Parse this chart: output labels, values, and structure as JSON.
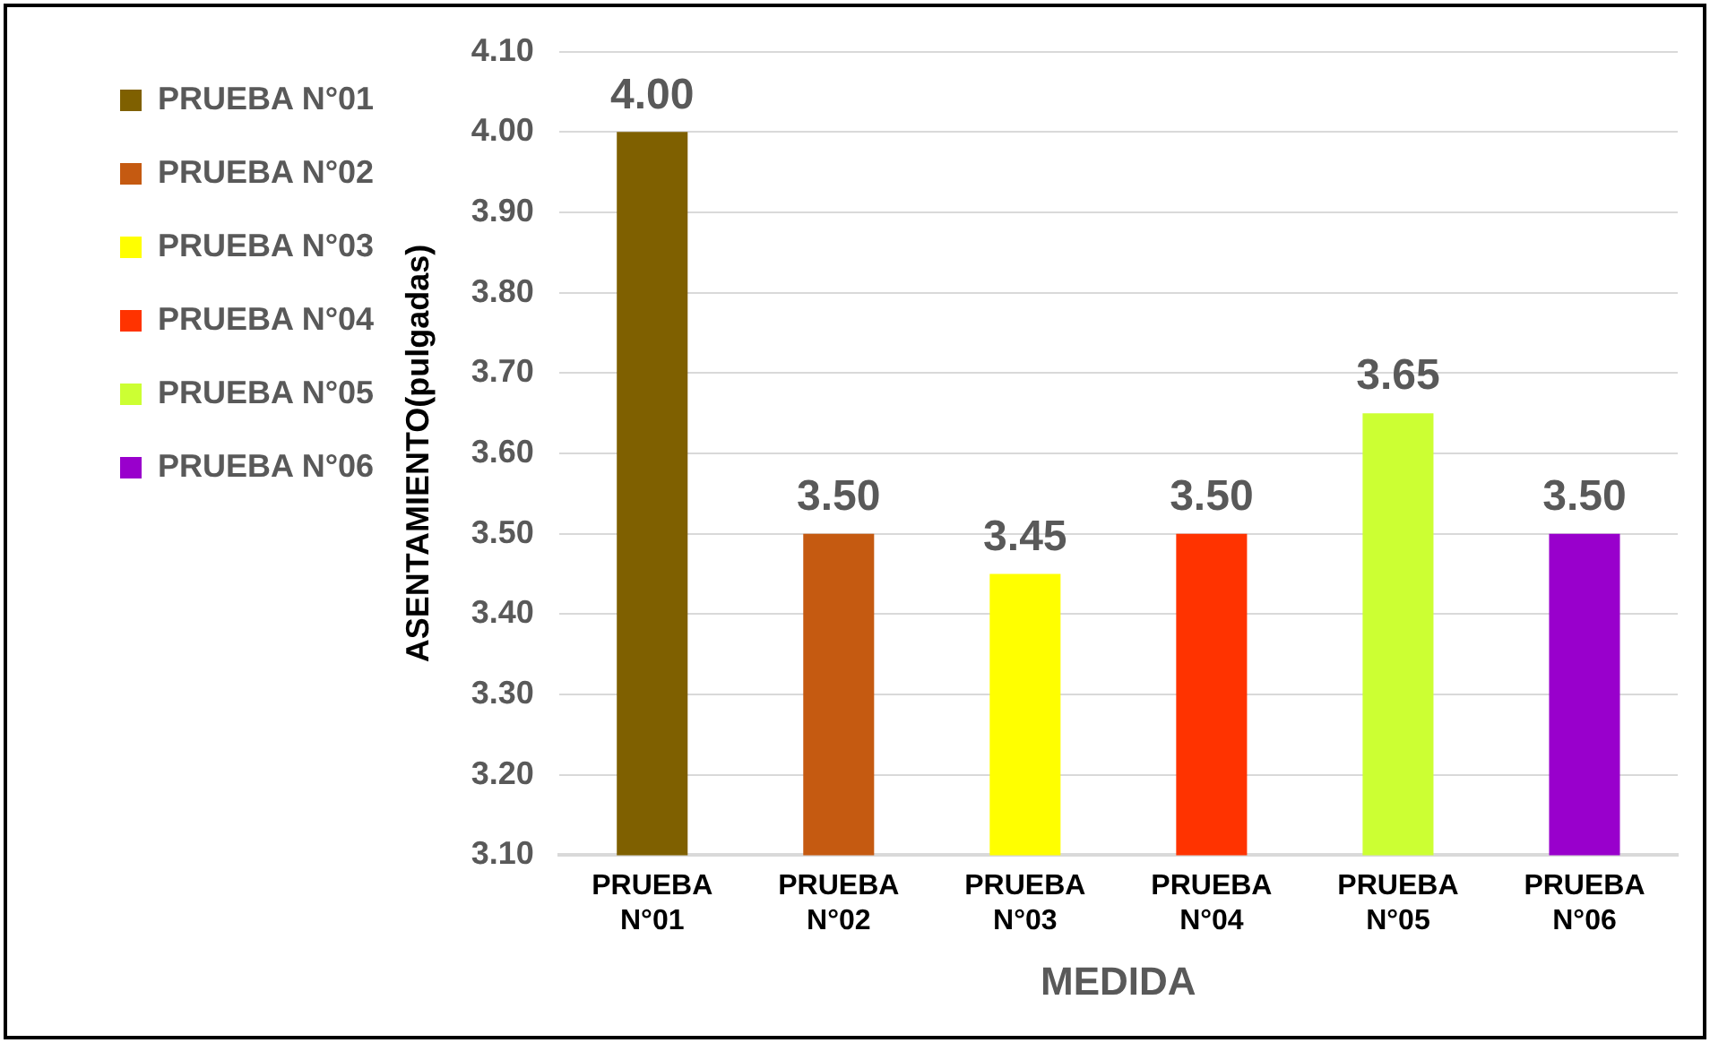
{
  "chart_data": {
    "type": "bar",
    "xlabel": "MEDIDA",
    "ylabel": "ASENTAMIENTO(pulgadas)",
    "categories": [
      "PRUEBA N°01",
      "PRUEBA N°02",
      "PRUEBA N°03",
      "PRUEBA N°04",
      "PRUEBA N°05",
      "PRUEBA N°06"
    ],
    "series": [
      {
        "name": "PRUEBA N°01",
        "color": "#7f6000",
        "values": [
          4.0,
          null,
          null,
          null,
          null,
          null
        ],
        "value_labels": [
          "4.00",
          null,
          null,
          null,
          null,
          null
        ]
      },
      {
        "name": "PRUEBA N°02",
        "color": "#c55a11",
        "values": [
          null,
          3.5,
          null,
          null,
          null,
          null
        ],
        "value_labels": [
          null,
          "3.50",
          null,
          null,
          null,
          null
        ]
      },
      {
        "name": "PRUEBA N°03",
        "color": "#ffff00",
        "values": [
          null,
          null,
          3.45,
          null,
          null,
          null
        ],
        "value_labels": [
          null,
          null,
          "3.45",
          null,
          null,
          null
        ]
      },
      {
        "name": "PRUEBA N°04",
        "color": "#ff3300",
        "values": [
          null,
          null,
          null,
          3.5,
          null,
          null
        ],
        "value_labels": [
          null,
          null,
          null,
          "3.50",
          null,
          null
        ]
      },
      {
        "name": "PRUEBA N°05",
        "color": "#ccff33",
        "values": [
          null,
          null,
          null,
          null,
          3.65,
          null
        ],
        "value_labels": [
          null,
          null,
          null,
          null,
          "3.65",
          null
        ]
      },
      {
        "name": "PRUEBA N°06",
        "color": "#9900cc",
        "values": [
          null,
          null,
          null,
          null,
          null,
          3.5
        ],
        "value_labels": [
          null,
          null,
          null,
          null,
          null,
          "3.50"
        ]
      }
    ],
    "ylim": [
      3.1,
      4.1
    ],
    "yticks": [
      {
        "value": 3.1,
        "label": "3.10"
      },
      {
        "value": 3.2,
        "label": "3.20"
      },
      {
        "value": 3.3,
        "label": "3.30"
      },
      {
        "value": 3.4,
        "label": "3.40"
      },
      {
        "value": 3.5,
        "label": "3.50"
      },
      {
        "value": 3.6,
        "label": "3.60"
      },
      {
        "value": 3.7,
        "label": "3.70"
      },
      {
        "value": 3.8,
        "label": "3.80"
      },
      {
        "value": 3.9,
        "label": "3.90"
      },
      {
        "value": 4.0,
        "label": "4.00"
      },
      {
        "value": 4.1,
        "label": "4.10"
      }
    ],
    "grid": "y",
    "legend": "left"
  }
}
